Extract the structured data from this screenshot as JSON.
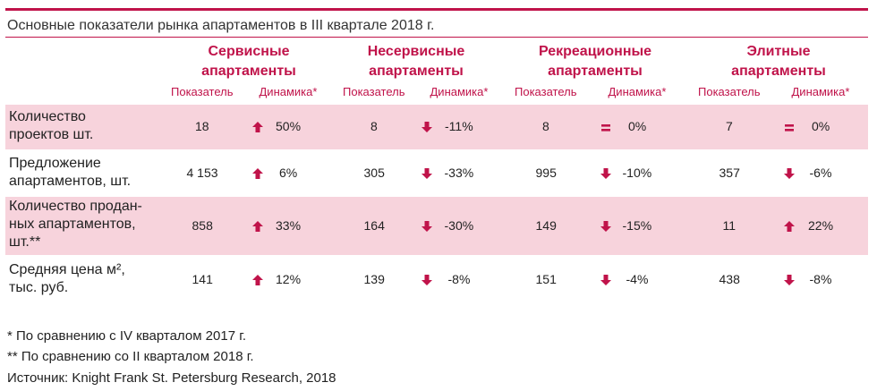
{
  "title": "Основные показатели рынка апартаментов в III квартале 2018 г.",
  "groups": [
    {
      "line1": "Сервисные",
      "line2": "апартаменты",
      "col1": "Показатель",
      "col2": "Динамика*"
    },
    {
      "line1": "Несервисные",
      "line2": "апартаменты",
      "col1": "Показатель",
      "col2": "Динамика*"
    },
    {
      "line1": "Рекреационные",
      "line2": "апартаменты",
      "col1": "Показатель",
      "col2": "Динамика*"
    },
    {
      "line1": "Элитные",
      "line2": "апартаменты",
      "col1": "Показатель",
      "col2": "Динамика*"
    }
  ],
  "rows": [
    {
      "label_lines": [
        "Количество",
        "проектов шт."
      ],
      "cells": [
        {
          "value": "18",
          "trend": "up",
          "change": "50%"
        },
        {
          "value": "8",
          "trend": "down",
          "change": "-11%"
        },
        {
          "value": "8",
          "trend": "equal",
          "change": "0%"
        },
        {
          "value": "7",
          "trend": "equal",
          "change": "0%"
        }
      ]
    },
    {
      "label_lines": [
        "Предложение",
        "апартаментов, шт."
      ],
      "cells": [
        {
          "value": "4 153",
          "trend": "up",
          "change": "6%"
        },
        {
          "value": "305",
          "trend": "down",
          "change": "-33%"
        },
        {
          "value": "995",
          "trend": "down",
          "change": "-10%"
        },
        {
          "value": "357",
          "trend": "down",
          "change": "-6%"
        }
      ]
    },
    {
      "label_lines": [
        "Количество продан-",
        "ных апартаментов,",
        "шт.**"
      ],
      "cells": [
        {
          "value": "858",
          "trend": "up",
          "change": "33%"
        },
        {
          "value": "164",
          "trend": "down",
          "change": "-30%"
        },
        {
          "value": "149",
          "trend": "down",
          "change": "-15%"
        },
        {
          "value": "11",
          "trend": "up",
          "change": "22%"
        }
      ]
    },
    {
      "label_lines": [
        "Средняя цена м²,",
        "тыс. руб."
      ],
      "cells": [
        {
          "value": "141",
          "trend": "up",
          "change": "12%"
        },
        {
          "value": "139",
          "trend": "down",
          "change": "-8%"
        },
        {
          "value": "151",
          "trend": "down",
          "change": "-4%"
        },
        {
          "value": "438",
          "trend": "down",
          "change": "-8%"
        }
      ]
    }
  ],
  "notes": [
    "* По сравнению с IV кварталом 2017 г.",
    "** По сравнению со II кварталом 2018 г.",
    "Источник: Knight Frank St. Petersburg Research, 2018"
  ],
  "colors": {
    "accent": "#c0134a",
    "highlight_row": "#f7d3dc"
  },
  "icons": {
    "up": "arrow-up-icon",
    "down": "arrow-down-icon",
    "equal": "equals-icon"
  }
}
